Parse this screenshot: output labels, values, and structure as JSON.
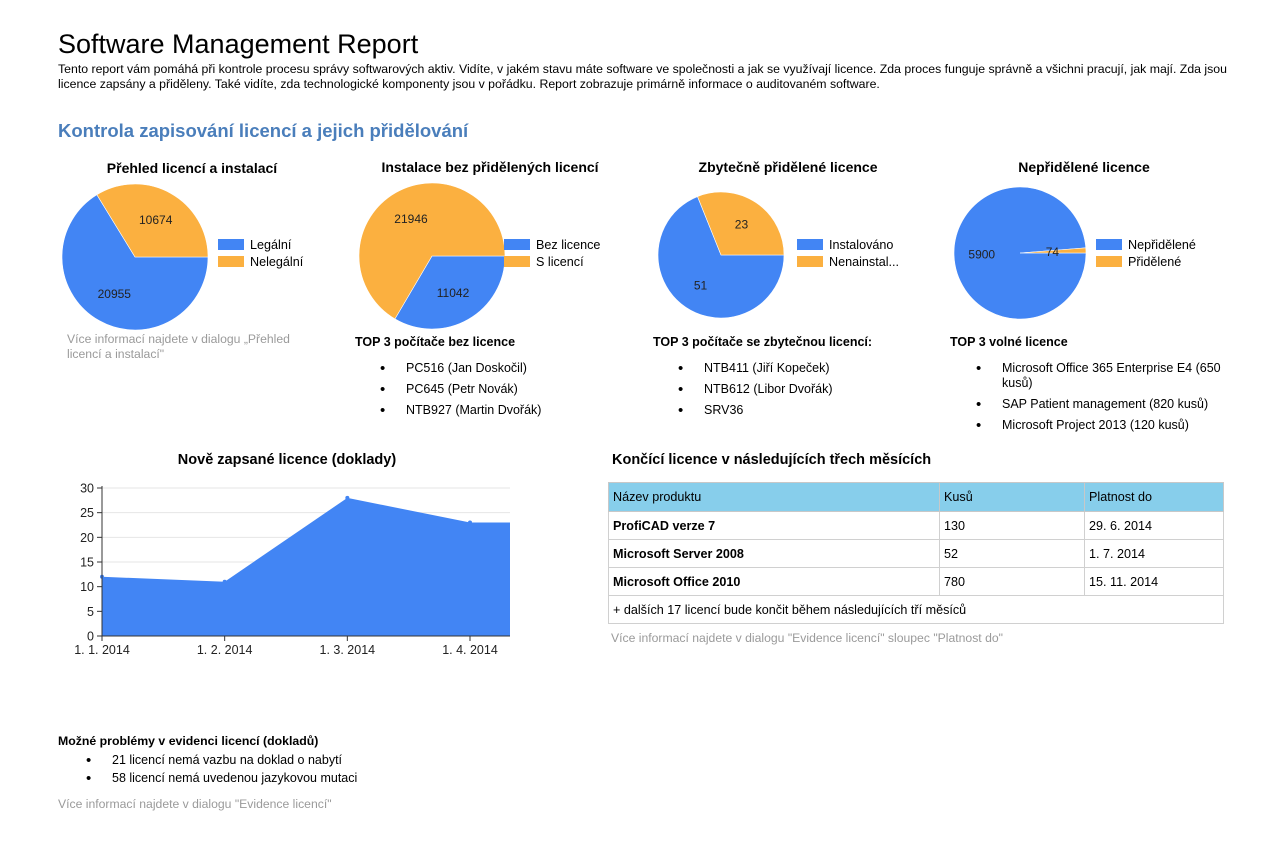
{
  "header": {
    "title": "Software Management Report",
    "intro": "Tento report vám pomáhá při kontrole procesu správy softwarových aktiv. Vidíte, v jakém stavu máte software ve společnosti a jak se využívají licence. Zda proces funguje správně a všichni pracují, jak mají. Zda jsou licence zapsány a přiděleny. Také vidíte, zda technologické komponenty jsou v pořádku. Report zobrazuje primárně informace o auditovaném software."
  },
  "section1": {
    "heading": "Kontrola zapisování licencí a jejich přidělování"
  },
  "colors": {
    "blue": "#4285f4",
    "orange": "#fbb040",
    "heading": "#4a7ebb",
    "table_header": "#87ceeb"
  },
  "pies": [
    {
      "title": "Přehled licencí a instalací",
      "legend": [
        "Legální",
        "Nelegální"
      ],
      "values": [
        20955,
        10674
      ],
      "labels": [
        "20955",
        "10674"
      ]
    },
    {
      "title": "Instalace bez přidělených licencí",
      "legend": [
        "Bez licence",
        "S licencí"
      ],
      "values": [
        11042,
        21946
      ],
      "labels": [
        "11042",
        "21946"
      ]
    },
    {
      "title": "Zbytečně přidělené licence",
      "legend": [
        "Instalováno",
        "Nenainstal..."
      ],
      "values": [
        51,
        23
      ],
      "labels": [
        "51",
        "23"
      ]
    },
    {
      "title": "Nepřidělené licence",
      "legend": [
        "Nepřidělené",
        "Přidělené"
      ],
      "values": [
        5900,
        74
      ],
      "labels": [
        "5900",
        "74"
      ]
    }
  ],
  "pie1_note": "Více informací najdete v dialogu „Přehled licencí a instalací\"",
  "top3": [
    {
      "title": "TOP 3 počítače bez licence",
      "items": [
        "PC516 (Jan Doskočil)",
        "PC645 (Petr Novák)",
        "NTB927 (Martin Dvořák)"
      ]
    },
    {
      "title": "TOP 3 počítače se zbytečnou licencí:",
      "items": [
        "NTB411 (Jiří Kopeček)",
        "NTB612 (Libor Dvořák)",
        "SRV36"
      ]
    },
    {
      "title": "TOP 3 volné licence",
      "items": [
        "Microsoft Office 365 Enterprise E4 (650 kusů)",
        "SAP Patient management (820 kusů)",
        "Microsoft Project 2013 (120 kusů)"
      ]
    }
  ],
  "chart_data": {
    "type": "area",
    "title": "Nově zapsané licence (doklady)",
    "categories": [
      "1. 1. 2014",
      "1. 2. 2014",
      "1. 3. 2014",
      "1. 4. 2014"
    ],
    "values": [
      12,
      11,
      28,
      23
    ],
    "ylim": [
      0,
      30
    ],
    "yticks": [
      "0",
      "5",
      "10",
      "15",
      "20",
      "25",
      "30"
    ],
    "grid": true
  },
  "expiring": {
    "title": "Končící licence v následujících třech měsících",
    "columns": [
      "Název produktu",
      "Kusů",
      "Platnost do"
    ],
    "rows": [
      [
        "ProfiCAD verze 7",
        "130",
        "29. 6. 2014"
      ],
      [
        "Microsoft Server 2008",
        "52",
        "1. 7. 2014"
      ],
      [
        "Microsoft Office 2010",
        "780",
        "15. 11. 2014"
      ]
    ],
    "footer": "+ dalších 17 licencí bude končit během následujících tří měsíců",
    "note": "Více informací najdete v dialogu \"Evidence licencí\" sloupec \"Platnost do\""
  },
  "problems": {
    "title": "Možné problémy v evidenci licencí (dokladů)",
    "items": [
      "21 licencí nemá vazbu na doklad o nabytí",
      "58 licencí nemá uvedenou jazykovou mutaci"
    ],
    "note": "Více informací najdete v dialogu \"Evidence licencí\""
  }
}
